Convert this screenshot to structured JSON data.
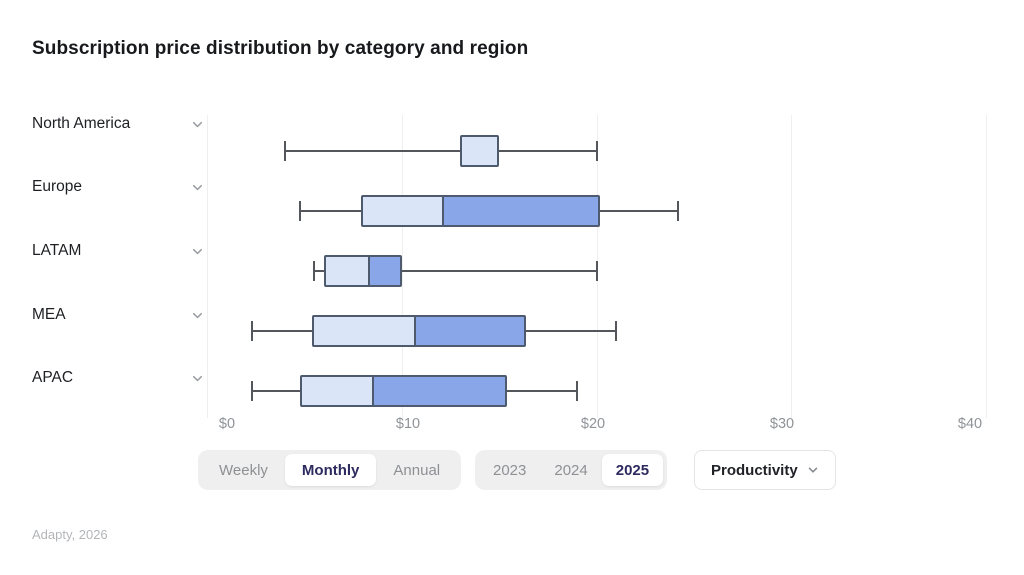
{
  "title": "Subscription price distribution by category and region",
  "footer": "Adapty, 2026",
  "colors": {
    "box_light_fill": "#dbe5f8",
    "box_dark_fill": "#89a6e9",
    "box_border": "#4e5a6e",
    "whisker": "#53575c",
    "gridline": "#efefef",
    "selected_text": "#2d2b5f",
    "muted_text": "#8e9094"
  },
  "chart_data": {
    "type": "boxplot",
    "orientation": "horizontal",
    "title": "Subscription price distribution by category and region",
    "categories": [
      "North America",
      "Europe",
      "LATAM",
      "MEA",
      "APAC"
    ],
    "series": [
      {
        "name": "North America",
        "min": 4,
        "q1": 13,
        "median": 15,
        "q3": 15,
        "max": 20
      },
      {
        "name": "Europe",
        "min": 4.8,
        "q1": 7.9,
        "median": 12.1,
        "q3": 20.2,
        "max": 24.2
      },
      {
        "name": "LATAM",
        "min": 5.5,
        "q1": 6,
        "median": 8.3,
        "q3": 10,
        "max": 20
      },
      {
        "name": "MEA",
        "min": 2.3,
        "q1": 5.4,
        "median": 10.7,
        "q3": 16.4,
        "max": 21
      },
      {
        "name": "APAC",
        "min": 2.3,
        "q1": 4.8,
        "median": 8.5,
        "q3": 15.4,
        "max": 19
      }
    ],
    "xlim": [
      0,
      40
    ],
    "x_tick_values": [
      0,
      10,
      20,
      30,
      40
    ],
    "x_tick_labels": [
      "$0",
      "$10",
      "$20",
      "$30",
      "$40"
    ],
    "grid": "vertical-light",
    "legend": "none"
  },
  "controls": {
    "period": {
      "options": [
        "Weekly",
        "Monthly",
        "Annual"
      ],
      "selected": "Monthly"
    },
    "year": {
      "options": [
        "2023",
        "2024",
        "2025"
      ],
      "selected": "2025"
    },
    "category_dropdown": {
      "value": "Productivity",
      "icon": "chevron-down-icon"
    }
  }
}
